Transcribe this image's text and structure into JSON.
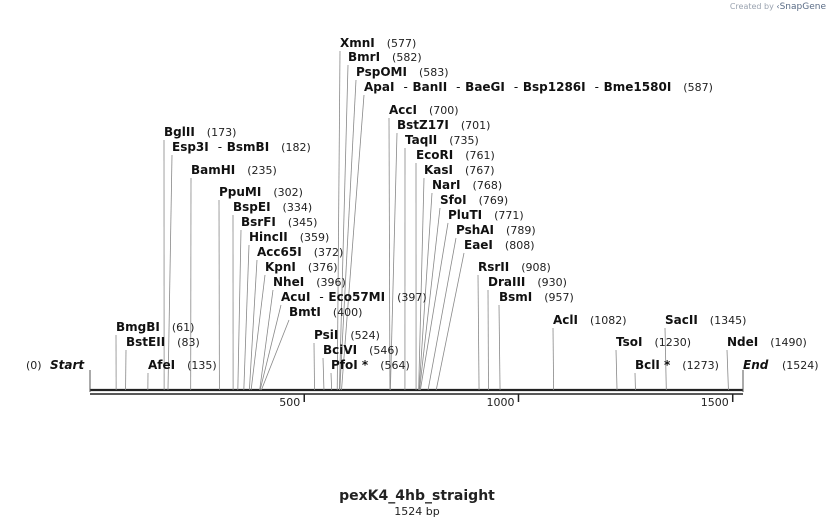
{
  "credit": {
    "prefix": "Created by",
    "brand": "SnapGene"
  },
  "map": {
    "title": "pexK4_4hb_straight",
    "length_label": "1524 bp",
    "total_bp": 1524,
    "start_label": "Start",
    "start_position": "(0)",
    "end_label": "End",
    "end_position": "(1524)",
    "ticks": [
      {
        "bp": 500,
        "label": "500"
      },
      {
        "bp": 1000,
        "label": "1000"
      },
      {
        "bp": 1500,
        "label": "1500"
      }
    ],
    "sites": [
      {
        "names": [
          "XmnI"
        ],
        "position": "(577)",
        "bp": 577
      },
      {
        "names": [
          "BmrI"
        ],
        "position": "(582)",
        "bp": 582
      },
      {
        "names": [
          "PspOMI"
        ],
        "position": "(583)",
        "bp": 583
      },
      {
        "names": [
          "ApaI",
          "BanII",
          "BaeGI",
          "Bsp1286I",
          "Bme1580I"
        ],
        "position": "(587)",
        "bp": 587
      },
      {
        "names": [
          "AccI"
        ],
        "position": "(700)",
        "bp": 700
      },
      {
        "names": [
          "BstZ17I"
        ],
        "position": "(701)",
        "bp": 701
      },
      {
        "names": [
          "TaqII"
        ],
        "position": "(735)",
        "bp": 735
      },
      {
        "names": [
          "EcoRI"
        ],
        "position": "(761)",
        "bp": 761
      },
      {
        "names": [
          "KasI"
        ],
        "position": "(767)",
        "bp": 767
      },
      {
        "names": [
          "NarI"
        ],
        "position": "(768)",
        "bp": 768
      },
      {
        "names": [
          "SfoI"
        ],
        "position": "(769)",
        "bp": 769
      },
      {
        "names": [
          "PluTI"
        ],
        "position": "(771)",
        "bp": 771
      },
      {
        "names": [
          "PshAI"
        ],
        "position": "(789)",
        "bp": 789
      },
      {
        "names": [
          "EaeI"
        ],
        "position": "(808)",
        "bp": 808
      },
      {
        "names": [
          "BglII"
        ],
        "position": "(173)",
        "bp": 173
      },
      {
        "names": [
          "Esp3I",
          "BsmBI"
        ],
        "position": "(182)",
        "bp": 182
      },
      {
        "names": [
          "BamHI"
        ],
        "position": "(235)",
        "bp": 235
      },
      {
        "names": [
          "PpuMI"
        ],
        "position": "(302)",
        "bp": 302
      },
      {
        "names": [
          "BspEI"
        ],
        "position": "(334)",
        "bp": 334
      },
      {
        "names": [
          "BsrFI"
        ],
        "position": "(345)",
        "bp": 345
      },
      {
        "names": [
          "HincII"
        ],
        "position": "(359)",
        "bp": 359
      },
      {
        "names": [
          "Acc65I"
        ],
        "position": "(372)",
        "bp": 372
      },
      {
        "names": [
          "KpnI"
        ],
        "position": "(376)",
        "bp": 376
      },
      {
        "names": [
          "NheI"
        ],
        "position": "(396)",
        "bp": 396
      },
      {
        "names": [
          "AcuI",
          "Eco57MI"
        ],
        "position": "(397)",
        "bp": 397
      },
      {
        "names": [
          "BmtI"
        ],
        "position": "(400)",
        "bp": 400
      },
      {
        "names": [
          "RsrII"
        ],
        "position": "(908)",
        "bp": 908
      },
      {
        "names": [
          "DraIII"
        ],
        "position": "(930)",
        "bp": 930
      },
      {
        "names": [
          "BsmI"
        ],
        "position": "(957)",
        "bp": 957
      },
      {
        "names": [
          "AclI"
        ],
        "position": "(1082)",
        "bp": 1082
      },
      {
        "names": [
          "SacII"
        ],
        "position": "(1345)",
        "bp": 1345
      },
      {
        "names": [
          "BmgBI"
        ],
        "position": "(61)",
        "bp": 61
      },
      {
        "names": [
          "BstEII"
        ],
        "position": "(83)",
        "bp": 83
      },
      {
        "names": [
          "AfeI"
        ],
        "position": "(135)",
        "bp": 135
      },
      {
        "names": [
          "PsiI"
        ],
        "position": "(524)",
        "bp": 524
      },
      {
        "names": [
          "BciVI"
        ],
        "position": "(546)",
        "bp": 546
      },
      {
        "names": [
          "PfoI *"
        ],
        "position": "(564)",
        "bp": 564
      },
      {
        "names": [
          "TsoI"
        ],
        "position": "(1230)",
        "bp": 1230
      },
      {
        "names": [
          "NdeI"
        ],
        "position": "(1490)",
        "bp": 1490
      },
      {
        "names": [
          "BclI *"
        ],
        "position": "(1273)",
        "bp": 1273
      }
    ]
  }
}
